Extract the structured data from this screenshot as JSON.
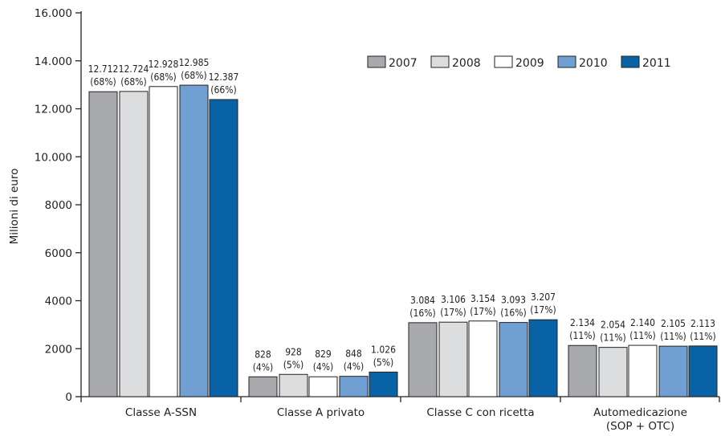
{
  "chart_data": {
    "type": "bar",
    "title": "",
    "xlabel": "",
    "ylabel": "Milioni di euro",
    "ylim": [
      0,
      16000
    ],
    "yticks": [
      0,
      2000,
      4000,
      6000,
      8000,
      10000,
      12000,
      14000,
      16000
    ],
    "ytick_labels": [
      "0",
      "2000",
      "4000",
      "6000",
      "8000",
      "10.000",
      "12.000",
      "14.000",
      "16.000"
    ],
    "legend_position": "top-right",
    "categories": [
      "Classe A-SSN",
      "Classe A privato",
      "Classe C con ricetta",
      "Automedicazione\n(SOP + OTC)"
    ],
    "series": [
      {
        "name": "2007",
        "color": "#a7a9ac",
        "values": [
          12712,
          828,
          3084,
          2134
        ],
        "labels": [
          "12.712",
          "828",
          "3.084",
          "2.134"
        ],
        "shares": [
          "(68%)",
          "(4%)",
          "(16%)",
          "(11%)"
        ]
      },
      {
        "name": "2008",
        "color": "#dcdddf",
        "values": [
          12724,
          928,
          3106,
          2054
        ],
        "labels": [
          "12.724",
          "928",
          "3.106",
          "2.054"
        ],
        "shares": [
          "(68%)",
          "(5%)",
          "(17%)",
          "(11%)"
        ]
      },
      {
        "name": "2009",
        "color": "#ffffff",
        "values": [
          12928,
          829,
          3154,
          2140
        ],
        "labels": [
          "12.928",
          "829",
          "3.154",
          "2.140"
        ],
        "shares": [
          "(68%)",
          "(4%)",
          "(17%)",
          "(11%)"
        ]
      },
      {
        "name": "2010",
        "color": "#709fd3",
        "values": [
          12985,
          848,
          3093,
          2105
        ],
        "labels": [
          "12.985",
          "848",
          "3.093",
          "2.105"
        ],
        "shares": [
          "(68%)",
          "(4%)",
          "(16%)",
          "(11%)"
        ]
      },
      {
        "name": "2011",
        "color": "#0a62a6",
        "values": [
          12387,
          1026,
          3207,
          2113
        ],
        "labels": [
          "12.387",
          "1.026",
          "3.207",
          "2.113"
        ],
        "shares": [
          "(66%)",
          "(5%)",
          "(17%)",
          "(11%)"
        ]
      }
    ]
  }
}
